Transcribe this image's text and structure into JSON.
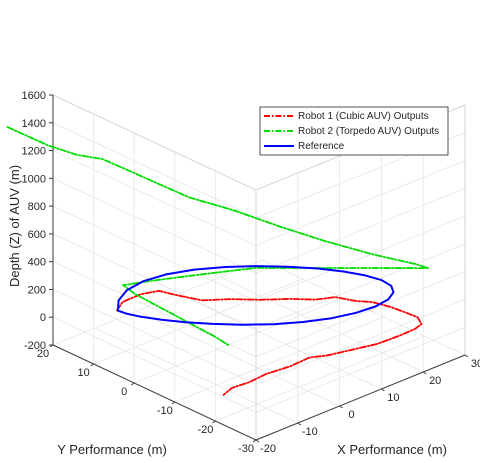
{
  "chart_data": {
    "type": "line",
    "projection": "3d",
    "title": "",
    "xlabel": "X Performance (m)",
    "ylabel": "Y Performance (m)",
    "zlabel": "Depth (Z) of AUV (m)",
    "xlim": [
      -20,
      30
    ],
    "ylim": [
      -30,
      20
    ],
    "zlim": [
      -200,
      1600
    ],
    "xticks": [
      -20,
      -10,
      0,
      10,
      20,
      30
    ],
    "yticks": [
      -30,
      -20,
      -10,
      0,
      10,
      20
    ],
    "zticks": [
      -200,
      0,
      200,
      400,
      600,
      800,
      1000,
      1200,
      1400,
      1600
    ],
    "grid": true,
    "legend_position": "top-right",
    "series": [
      {
        "name": "Robot 1 (Cubic AUV) Outputs",
        "color": "#ff0000",
        "style": "dash-dot",
        "points": [
          [
            -17.5,
            6.8,
            200
          ],
          [
            -14.5,
            8.5,
            200
          ],
          [
            -10.5,
            8.2,
            210
          ],
          [
            -8.0,
            6.3,
            230
          ],
          [
            -6.0,
            3.5,
            210
          ],
          [
            -3.5,
            0.2,
            190
          ],
          [
            0.0,
            -3.0,
            200
          ],
          [
            4.0,
            -6.2,
            190
          ],
          [
            8.5,
            -9.0,
            180
          ],
          [
            12.0,
            -11.8,
            170
          ],
          [
            15.0,
            -13.5,
            175
          ],
          [
            17.5,
            -16.0,
            150
          ],
          [
            19.5,
            -18.0,
            145
          ],
          [
            21.5,
            -20.5,
            120
          ],
          [
            23.0,
            -22.5,
            90
          ],
          [
            24.0,
            -24.5,
            70
          ],
          [
            23.0,
            -26.5,
            60
          ],
          [
            20.5,
            -27.5,
            70
          ],
          [
            16.5,
            -28.0,
            80
          ],
          [
            12.0,
            -27.0,
            60
          ],
          [
            8.0,
            -25.0,
            40
          ],
          [
            4.0,
            -23.0,
            20
          ],
          [
            1.0,
            -21.5,
            20
          ],
          [
            -3.0,
            -21.0,
            0
          ],
          [
            -8.0,
            -20.0,
            -10
          ],
          [
            -12.0,
            -20.0,
            -20
          ],
          [
            -16.0,
            -20.0,
            -10
          ],
          [
            -19.0,
            -21.0,
            -10
          ]
        ]
      },
      {
        "name": "Robot 2 (Torpedo AUV) Outputs",
        "color": "#00dd00",
        "style": "dash-dot",
        "points": [
          [
            -27.0,
            24.0,
            1400
          ],
          [
            -23.0,
            18.0,
            1300
          ],
          [
            -20.0,
            14.0,
            1250
          ],
          [
            -16.0,
            12.0,
            1200
          ],
          [
            -12.0,
            10.0,
            1100
          ],
          [
            -8.0,
            6.0,
            1000
          ],
          [
            -4.0,
            3.0,
            900
          ],
          [
            2.0,
            -2.0,
            800
          ],
          [
            8.0,
            -7.0,
            680
          ],
          [
            14.0,
            -12.0,
            570
          ],
          [
            20.0,
            -18.0,
            480
          ],
          [
            25.0,
            -23.0,
            420
          ],
          [
            27.0,
            -24.0,
            380
          ],
          [
            18.0,
            -10.0,
            300
          ],
          [
            8.0,
            -1.0,
            300
          ],
          [
            0.0,
            3.0,
            300
          ],
          [
            -8.0,
            8.0,
            280
          ],
          [
            -11.0,
            12.0,
            230
          ],
          [
            -10.0,
            10.0,
            180
          ],
          [
            -8.5,
            1.0,
            120
          ],
          [
            -6.5,
            -6.0,
            50
          ],
          [
            -6.0,
            -9.0,
            20
          ]
        ]
      },
      {
        "name": "Reference",
        "color": "#0000ff",
        "style": "solid",
        "points": [
          [
            -17.5,
            6.6,
            200
          ],
          [
            -14.6,
            9.4,
            200
          ],
          [
            -10.8,
            11.3,
            200
          ],
          [
            -6.2,
            12.0,
            200
          ],
          [
            -1.4,
            11.3,
            200
          ],
          [
            3.5,
            9.4,
            200
          ],
          [
            8.2,
            6.6,
            200
          ],
          [
            12.5,
            3.2,
            200
          ],
          [
            16.3,
            -0.5,
            200
          ],
          [
            19.6,
            -4.4,
            200
          ],
          [
            22.1,
            -8.2,
            200
          ],
          [
            23.8,
            -11.8,
            200
          ],
          [
            24.6,
            -15.0,
            200
          ],
          [
            24.3,
            -17.7,
            200
          ],
          [
            22.8,
            -19.8,
            200
          ],
          [
            20.2,
            -21.2,
            200
          ],
          [
            16.6,
            -21.7,
            200
          ],
          [
            12.4,
            -21.3,
            200
          ],
          [
            7.8,
            -20.0,
            200
          ],
          [
            3.1,
            -17.8,
            200
          ],
          [
            -1.3,
            -15.0,
            200
          ],
          [
            -5.4,
            -11.6,
            200
          ],
          [
            -9.0,
            -8.0,
            200
          ],
          [
            -12.0,
            -4.4,
            200
          ],
          [
            -14.4,
            -1.0,
            200
          ],
          [
            -16.2,
            2.2,
            200
          ],
          [
            -17.2,
            4.8,
            200
          ],
          [
            -17.5,
            6.6,
            200
          ]
        ]
      }
    ]
  }
}
